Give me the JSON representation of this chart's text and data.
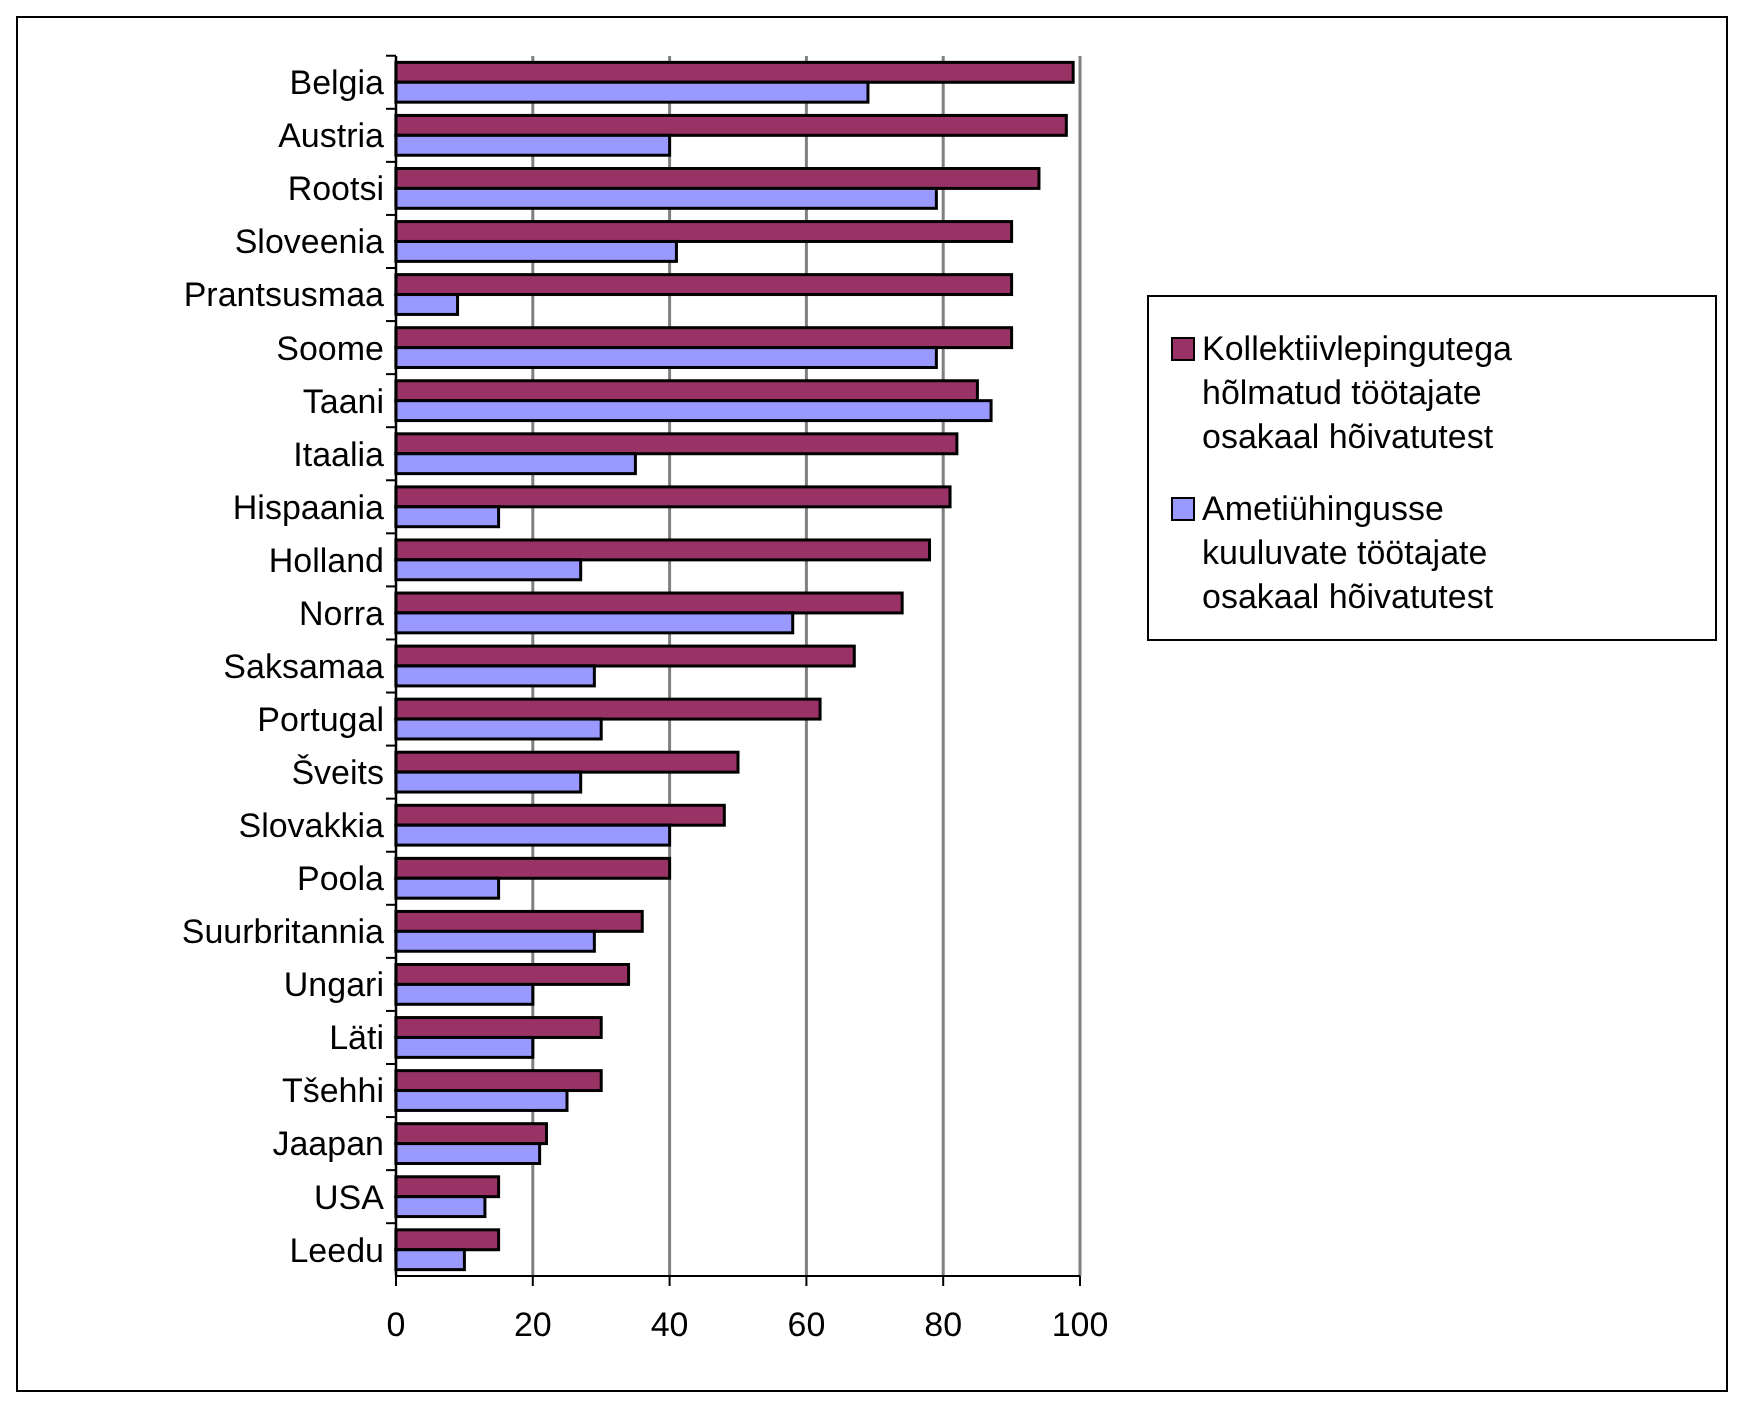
{
  "chart_data": {
    "type": "bar",
    "orientation": "horizontal",
    "categories": [
      "Belgia",
      "Austria",
      "Rootsi",
      "Sloveenia",
      "Prantsusmaa",
      "Soome",
      "Taani",
      "Itaalia",
      "Hispaania",
      "Holland",
      "Norra",
      "Saksamaa",
      "Portugal",
      "Šveits",
      "Slovakkia",
      "Poola",
      "Suurbritannia",
      "Ungari",
      "Läti",
      "Tšehhi",
      "Jaapan",
      "USA",
      "Leedu"
    ],
    "series": [
      {
        "name": "Kollektiivlepingutega hõlmatud töötajate osakaal hõivatutest",
        "color": "#993366",
        "values": [
          99,
          98,
          94,
          90,
          90,
          90,
          85,
          82,
          81,
          78,
          74,
          67,
          62,
          50,
          48,
          40,
          36,
          34,
          30,
          30,
          22,
          15,
          15
        ]
      },
      {
        "name": "Ametiühingusse kuuluvate töötajate osakaal hõivatutest",
        "color": "#9999ff",
        "values": [
          69,
          40,
          79,
          41,
          9,
          79,
          87,
          35,
          15,
          27,
          58,
          29,
          30,
          27,
          40,
          15,
          29,
          20,
          20,
          25,
          21,
          13,
          10
        ]
      }
    ],
    "xlim": [
      0,
      100
    ],
    "xticks": [
      0,
      20,
      40,
      60,
      80,
      100
    ],
    "grid": "x",
    "legend": "right"
  }
}
